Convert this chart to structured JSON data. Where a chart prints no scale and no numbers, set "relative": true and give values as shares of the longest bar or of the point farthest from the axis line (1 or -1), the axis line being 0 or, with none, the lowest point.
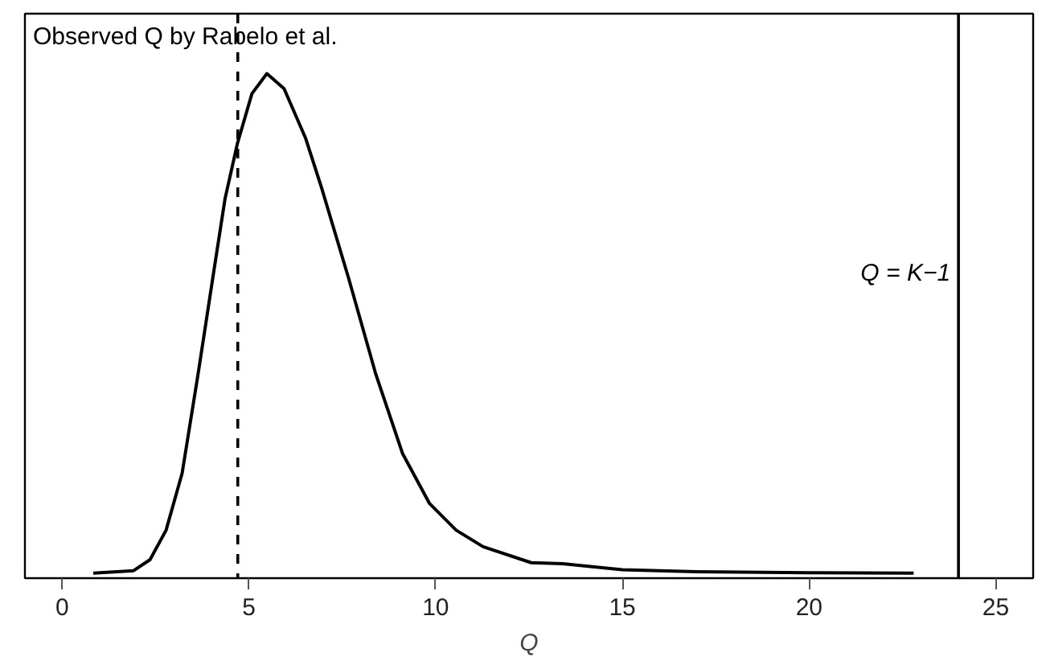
{
  "chart_data": {
    "type": "line",
    "relative": true,
    "xlabel": "Q",
    "xlim": [
      -1.0,
      26.0
    ],
    "xticks": [
      0,
      5,
      10,
      15,
      20,
      25
    ],
    "grid": false,
    "marker": "none",
    "line_style": "solid",
    "series": [
      {
        "color": "#000000",
        "x": [
          0.83,
          1.91,
          2.35,
          2.78,
          3.21,
          3.64,
          4.07,
          4.36,
          4.69,
          5.08,
          5.48,
          5.94,
          6.52,
          6.95,
          7.67,
          8.39,
          9.11,
          9.83,
          10.55,
          11.27,
          12.56,
          13.4,
          15.0,
          17.0,
          20.0,
          22.8
        ],
        "values": [
          0,
          0.005,
          0.027,
          0.086,
          0.2,
          0.4,
          0.61,
          0.75,
          0.86,
          0.96,
          1.0,
          0.97,
          0.87,
          0.77,
          0.59,
          0.4,
          0.24,
          0.14,
          0.086,
          0.053,
          0.021,
          0.019,
          0.007,
          0.003,
          0.001,
          0
        ]
      }
    ],
    "ref_lines": [
      {
        "axis": "x",
        "value": 4.7,
        "line_style": "dashed",
        "color": "#000000",
        "label": "Observed Q by Rabelo et al."
      },
      {
        "axis": "x",
        "value": 24,
        "line_style": "solid",
        "color": "#000000",
        "label": "Q = K−1"
      }
    ]
  }
}
